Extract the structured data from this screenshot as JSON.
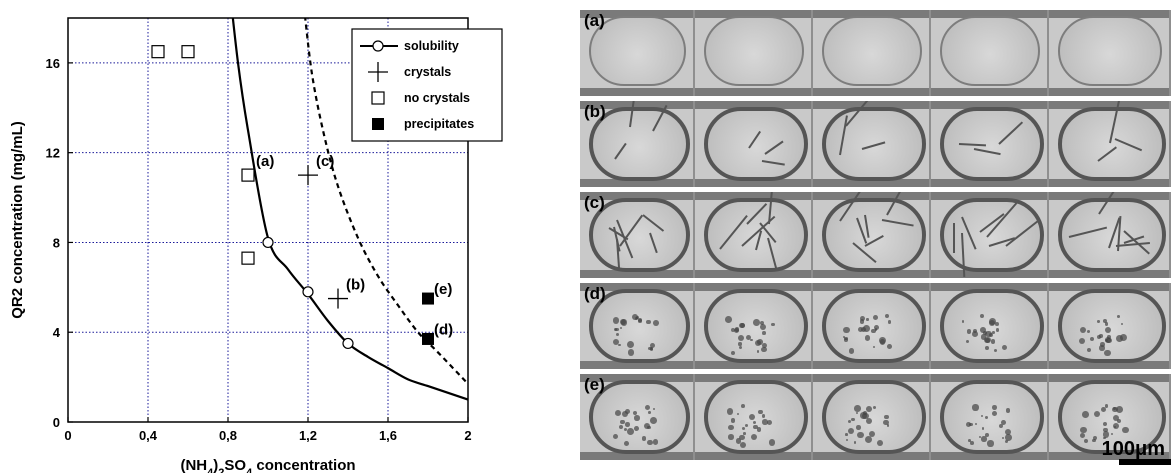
{
  "chart_data": {
    "type": "scatter",
    "xlabel": "(NH4)2SO4 concentration",
    "ylabel": "QR2 concentration (mg/mL)",
    "xlim": [
      0,
      2
    ],
    "ylim": [
      0,
      18
    ],
    "x_ticks": [
      "0",
      "0,4",
      "0,8",
      "1,2",
      "1,6",
      "2"
    ],
    "y_ticks": [
      "0",
      "4",
      "8",
      "12",
      "16"
    ],
    "grid": true,
    "legend_position": "top-right",
    "legend": [
      {
        "label": "solubility",
        "marker": "circle-line"
      },
      {
        "label": "crystals",
        "marker": "plus"
      },
      {
        "label": "no crystals",
        "marker": "open-square"
      },
      {
        "label": "precipitates",
        "marker": "filled-square"
      }
    ],
    "series": [
      {
        "name": "solubility",
        "kind": "points",
        "x": [
          1.0,
          1.2,
          1.4
        ],
        "y": [
          8.0,
          5.8,
          3.5
        ]
      },
      {
        "name": "crystals",
        "kind": "points",
        "x": [
          1.2,
          1.35
        ],
        "y": [
          11.0,
          5.5
        ]
      },
      {
        "name": "no crystals",
        "kind": "points",
        "x": [
          0.45,
          0.6,
          0.9,
          0.9
        ],
        "y": [
          16.5,
          16.5,
          11.0,
          7.3
        ]
      },
      {
        "name": "precipitates",
        "kind": "points",
        "x": [
          1.8,
          1.8
        ],
        "y": [
          5.5,
          3.7
        ]
      }
    ],
    "curves": [
      {
        "name": "solubility curve",
        "style": "solid",
        "x": [
          0.8,
          0.85,
          0.9,
          1.0,
          1.1,
          1.2,
          1.3,
          1.4,
          1.5,
          1.6,
          1.7,
          1.8,
          1.9,
          2.0
        ],
        "y": [
          20.0,
          16.0,
          13.0,
          8.2,
          6.8,
          5.7,
          4.5,
          3.5,
          2.9,
          2.4,
          1.9,
          1.6,
          1.3,
          1.0
        ]
      },
      {
        "name": "supersolubility curve",
        "style": "dashed",
        "x": [
          1.18,
          1.22,
          1.28,
          1.35,
          1.45,
          1.55,
          1.65,
          1.75,
          1.85,
          2.0
        ],
        "y": [
          18.5,
          15.5,
          12.8,
          10.5,
          8.2,
          6.5,
          5.2,
          4.0,
          3.1,
          1.7
        ]
      }
    ],
    "annotations": [
      {
        "text": "(a)",
        "x": 0.94,
        "y": 11.4
      },
      {
        "text": "(c)",
        "x": 1.24,
        "y": 11.4
      },
      {
        "text": "(b)",
        "x": 1.39,
        "y": 5.9
      },
      {
        "text": "(e)",
        "x": 1.83,
        "y": 5.7
      },
      {
        "text": "(d)",
        "x": 1.83,
        "y": 3.9
      }
    ]
  },
  "micrographs": {
    "scale_label": "100μm",
    "rows": [
      {
        "label": "(a)",
        "content": "empty"
      },
      {
        "label": "(b)",
        "content": "crystals"
      },
      {
        "label": "(c)",
        "content": "crystals"
      },
      {
        "label": "(d)",
        "content": "precipitate"
      },
      {
        "label": "(e)",
        "content": "precipitate"
      }
    ]
  }
}
